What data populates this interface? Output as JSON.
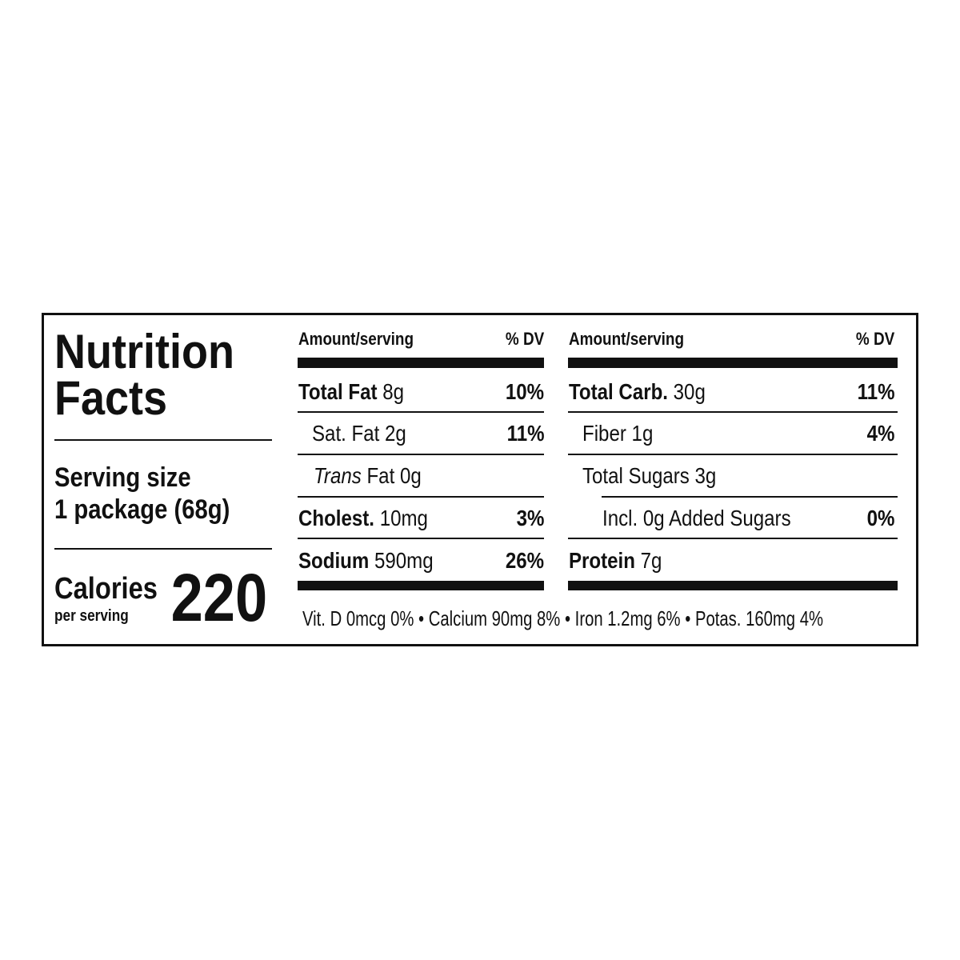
{
  "title_line1": "Nutrition",
  "title_line2": "Facts",
  "serving": {
    "label": "Serving size",
    "value": "1 package (68g)"
  },
  "calories": {
    "label": "Calories",
    "sublabel": "per serving",
    "value": "220"
  },
  "left_table": {
    "header_amount": "Amount/serving",
    "header_dv": "% DV",
    "rows": [
      {
        "name": "Total Fat",
        "amount": "8g",
        "dv": "10%"
      },
      {
        "name": "Sat. Fat",
        "amount": "2g",
        "dv": "11%"
      },
      {
        "name_italic": "Trans",
        "name": "Fat",
        "amount": "0g",
        "dv": ""
      },
      {
        "name": "Cholest.",
        "amount": "10mg",
        "dv": "3%"
      },
      {
        "name": "Sodium",
        "amount": "590mg",
        "dv": "26%"
      }
    ]
  },
  "right_table": {
    "header_amount": "Amount/serving",
    "header_dv": "% DV",
    "rows": [
      {
        "name": "Total Carb.",
        "amount": "30g",
        "dv": "11%"
      },
      {
        "name": "Fiber",
        "amount": "1g",
        "dv": "4%"
      },
      {
        "name": "Total Sugars",
        "amount": "3g",
        "dv": ""
      },
      {
        "name": "Incl. 0g Added Sugars",
        "amount": "",
        "dv": "0%"
      },
      {
        "name": "Protein",
        "amount": "7g",
        "dv": ""
      }
    ]
  },
  "micronutrients": "Vit. D 0mcg 0% • Calcium 90mg 8% • Iron 1.2mg 6% • Potas. 160mg  4%"
}
